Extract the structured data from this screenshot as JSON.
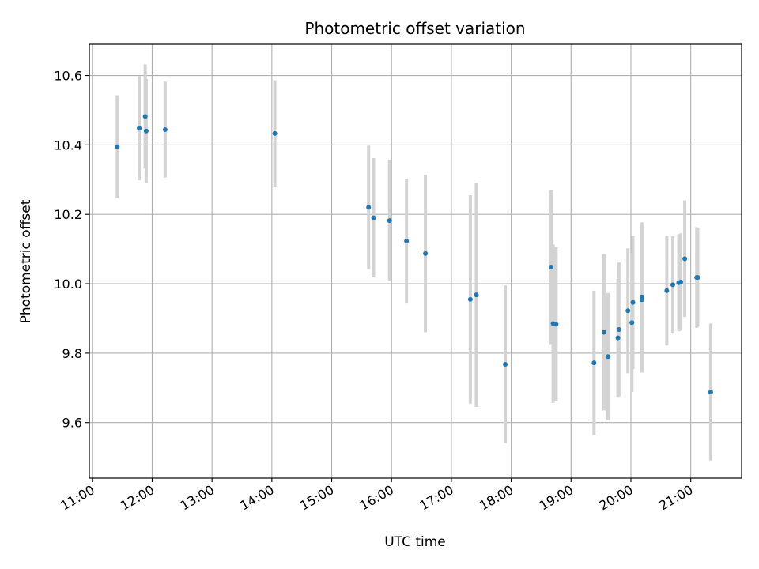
{
  "chart_data": {
    "type": "scatter",
    "title": "Photometric offset variation",
    "xlabel": "UTC time",
    "ylabel": "Photometric offset",
    "x_axis_type": "time",
    "xlim": [
      "10:57",
      "21:51"
    ],
    "ylim": [
      9.44,
      10.69
    ],
    "x_ticks": [
      "11:00",
      "12:00",
      "13:00",
      "14:00",
      "15:00",
      "16:00",
      "17:00",
      "18:00",
      "19:00",
      "20:00",
      "21:00"
    ],
    "y_ticks": [
      9.6,
      9.8,
      10.0,
      10.2,
      10.4,
      10.6
    ],
    "y_tick_labels": [
      "9.6",
      "9.8",
      "10.0",
      "10.2",
      "10.4",
      "10.6"
    ],
    "grid": true,
    "point_color": "#1f77b4",
    "errorbar_color": "#d3d3d3",
    "points": [
      {
        "t": "11:25",
        "y": 10.395,
        "err": 0.148
      },
      {
        "t": "11:47",
        "y": 10.448,
        "err": 0.15
      },
      {
        "t": "11:53",
        "y": 10.482,
        "err": 0.15
      },
      {
        "t": "11:54",
        "y": 10.44,
        "err": 0.15
      },
      {
        "t": "12:13",
        "y": 10.444,
        "err": 0.138
      },
      {
        "t": "14:03",
        "y": 10.433,
        "err": 0.153
      },
      {
        "t": "15:37",
        "y": 10.22,
        "err": 0.178
      },
      {
        "t": "15:42",
        "y": 10.19,
        "err": 0.172
      },
      {
        "t": "15:58",
        "y": 10.182,
        "err": 0.175
      },
      {
        "t": "16:15",
        "y": 10.123,
        "err": 0.18
      },
      {
        "t": "16:34",
        "y": 10.087,
        "err": 0.227
      },
      {
        "t": "17:19",
        "y": 9.955,
        "err": 0.3
      },
      {
        "t": "17:25",
        "y": 9.968,
        "err": 0.323
      },
      {
        "t": "17:54",
        "y": 9.768,
        "err": 0.227
      },
      {
        "t": "18:40",
        "y": 10.048,
        "err": 0.222
      },
      {
        "t": "18:42",
        "y": 9.885,
        "err": 0.228
      },
      {
        "t": "18:45",
        "y": 9.883,
        "err": 0.222
      },
      {
        "t": "19:23",
        "y": 9.772,
        "err": 0.208
      },
      {
        "t": "19:33",
        "y": 9.86,
        "err": 0.225
      },
      {
        "t": "19:37",
        "y": 9.79,
        "err": 0.183
      },
      {
        "t": "19:47",
        "y": 9.844,
        "err": 0.17
      },
      {
        "t": "19:48",
        "y": 9.868,
        "err": 0.193
      },
      {
        "t": "19:57",
        "y": 9.922,
        "err": 0.18
      },
      {
        "t": "20:01",
        "y": 9.888,
        "err": 0.2
      },
      {
        "t": "20:02",
        "y": 9.946,
        "err": 0.192
      },
      {
        "t": "20:11",
        "y": 9.962,
        "err": 0.215
      },
      {
        "t": "20:11",
        "y": 9.954,
        "err": 0.21
      },
      {
        "t": "20:36",
        "y": 9.98,
        "err": 0.158
      },
      {
        "t": "20:42",
        "y": 9.997,
        "err": 0.14
      },
      {
        "t": "20:48",
        "y": 10.003,
        "err": 0.14
      },
      {
        "t": "20:50",
        "y": 10.005,
        "err": 0.14
      },
      {
        "t": "20:54",
        "y": 10.072,
        "err": 0.168
      },
      {
        "t": "21:06",
        "y": 10.018,
        "err": 0.145
      },
      {
        "t": "21:07",
        "y": 10.018,
        "err": 0.142
      },
      {
        "t": "21:20",
        "y": 9.688,
        "err": 0.197
      }
    ]
  }
}
